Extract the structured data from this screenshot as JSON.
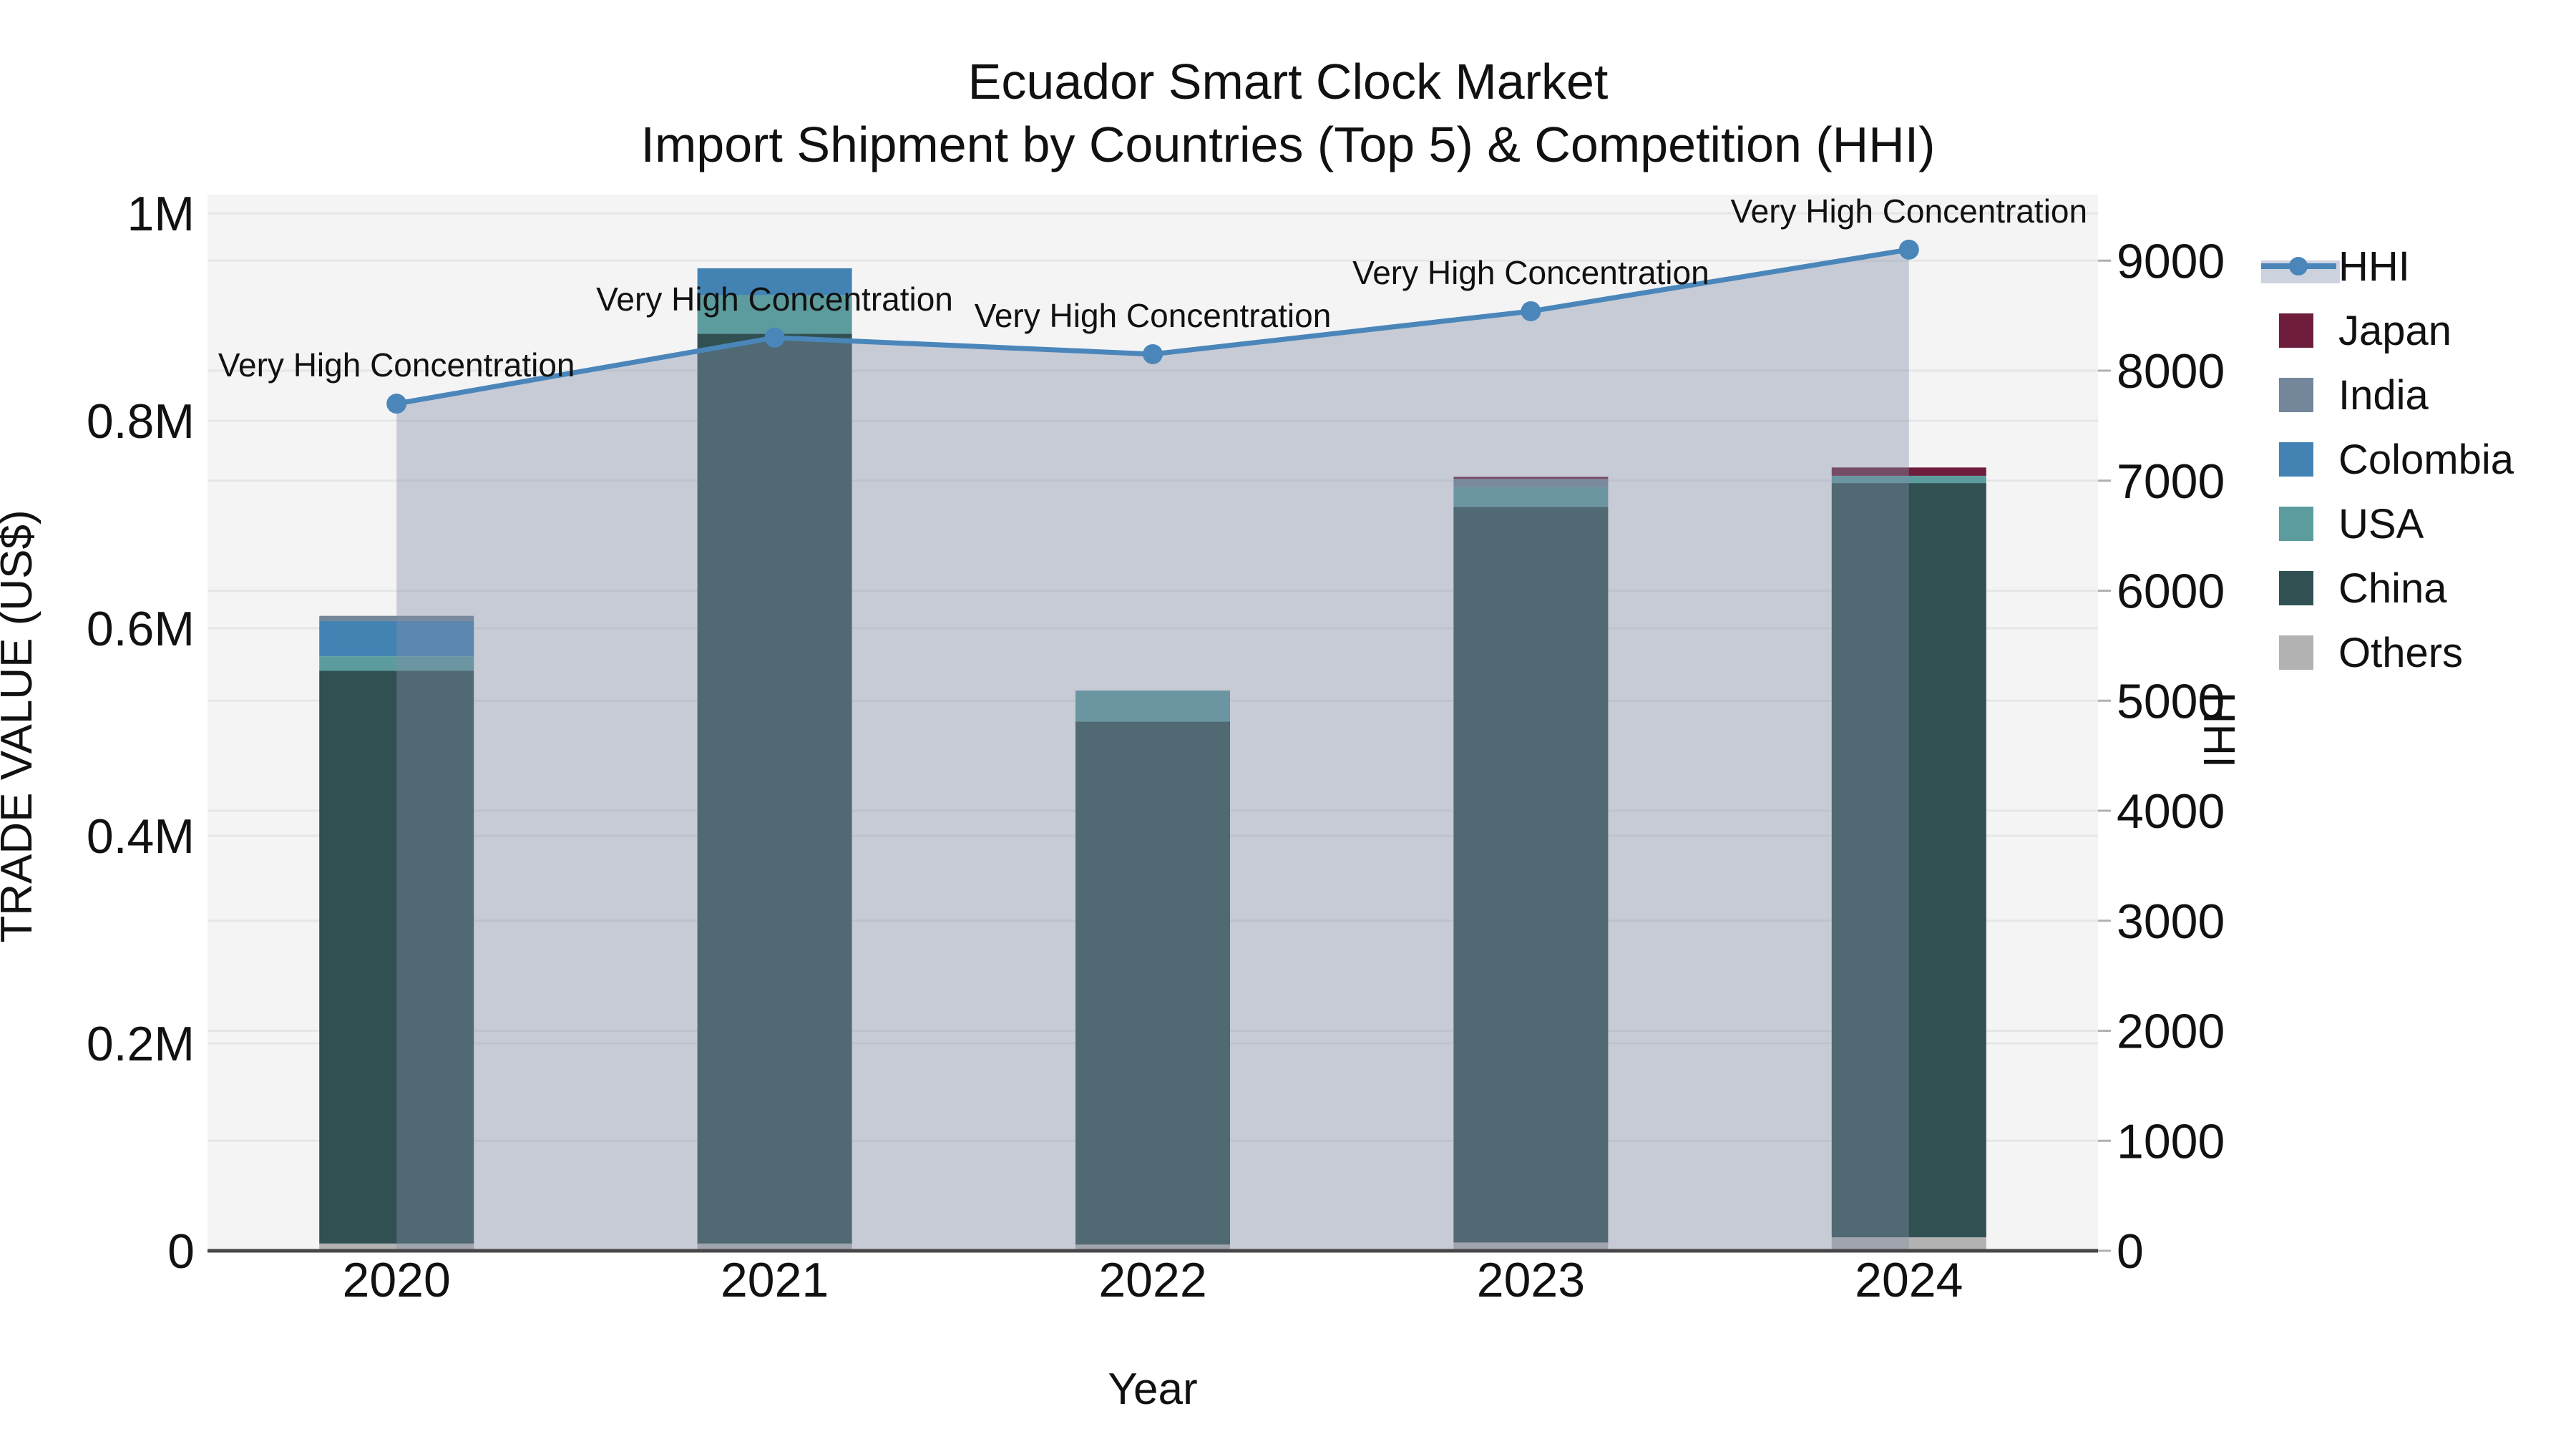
{
  "title": {
    "line1": "Ecuador Smart Clock Market",
    "line2": "Import Shipment by Countries (Top 5) & Competition (HHI)"
  },
  "axes": {
    "x": {
      "title": "Year",
      "tick_labels": [
        "2020",
        "2021",
        "2022",
        "2023",
        "2024"
      ]
    },
    "y_left": {
      "title": "TRADE VALUE (US$)",
      "tick_labels": [
        "0",
        "0.2M",
        "0.4M",
        "0.6M",
        "0.8M",
        "1M"
      ],
      "tick_values": [
        0,
        200000,
        400000,
        600000,
        800000,
        1000000
      ],
      "range": [
        0,
        1018000
      ]
    },
    "y_right": {
      "title": "HHI",
      "tick_labels": [
        "0",
        "1000",
        "2000",
        "3000",
        "4000",
        "5000",
        "6000",
        "7000",
        "8000",
        "9000"
      ],
      "tick_values": [
        0,
        1000,
        2000,
        3000,
        4000,
        5000,
        6000,
        7000,
        8000,
        9000
      ],
      "range": [
        0,
        9600
      ]
    }
  },
  "legend": {
    "items": [
      {
        "label": "HHI",
        "type": "line",
        "color": "#4a86ba",
        "band": "#ccd3de"
      },
      {
        "label": "Japan",
        "type": "square",
        "color": "#6e1e3c"
      },
      {
        "label": "India",
        "type": "square",
        "color": "#73869a"
      },
      {
        "label": "Colombia",
        "type": "square",
        "color": "#4383b4"
      },
      {
        "label": "USA",
        "type": "square",
        "color": "#5d9c9e"
      },
      {
        "label": "China",
        "type": "square",
        "color": "#305052"
      },
      {
        "label": "Others",
        "type": "square",
        "color": "#b2b2b2"
      }
    ]
  },
  "chart_data": {
    "type": "bar+line",
    "title": "Ecuador Smart Clock Market — Import Shipment by Countries (Top 5) & Competition (HHI)",
    "categories": [
      "2020",
      "2021",
      "2022",
      "2023",
      "2024"
    ],
    "bar_unit": "US$",
    "stack_order_bottom_to_top": [
      "Others",
      "China",
      "USA",
      "Colombia",
      "India",
      "Japan"
    ],
    "series": [
      {
        "name": "Others",
        "color": "#b2b2b2",
        "values": [
          7000,
          7000,
          6000,
          8000,
          13000
        ]
      },
      {
        "name": "China",
        "color": "#305052",
        "values": [
          552000,
          877000,
          504000,
          709000,
          727000
        ]
      },
      {
        "name": "USA",
        "color": "#5d9c9e",
        "values": [
          14000,
          37000,
          30000,
          19000,
          7000
        ]
      },
      {
        "name": "Colombia",
        "color": "#4383b4",
        "values": [
          34000,
          26000,
          0,
          0,
          0
        ]
      },
      {
        "name": "India",
        "color": "#73869a",
        "values": [
          5000,
          0,
          0,
          8000,
          0
        ]
      },
      {
        "name": "Japan",
        "color": "#6e1e3c",
        "values": [
          0,
          0,
          0,
          2000,
          8000
        ]
      }
    ],
    "bar_totals": [
      612000,
      947000,
      540000,
      746000,
      755000
    ],
    "hhi": {
      "name": "HHI",
      "values": [
        7700,
        8300,
        8150,
        8540,
        9100
      ],
      "line_color": "#4a86ba",
      "area_fill": "rgba(130,143,166,0.40)",
      "annotation": "Very High Concentration"
    },
    "style": {
      "plot_bg": "#f4f4f5",
      "grid_color": "#e4e6e8",
      "baseline_color": "#474747",
      "right_tick_mark_color": "#b0b0b0"
    },
    "axis_ranges": {
      "left": [
        0,
        1018000
      ],
      "right": [
        0,
        9600
      ]
    },
    "legend_position": "right",
    "grid": true
  }
}
